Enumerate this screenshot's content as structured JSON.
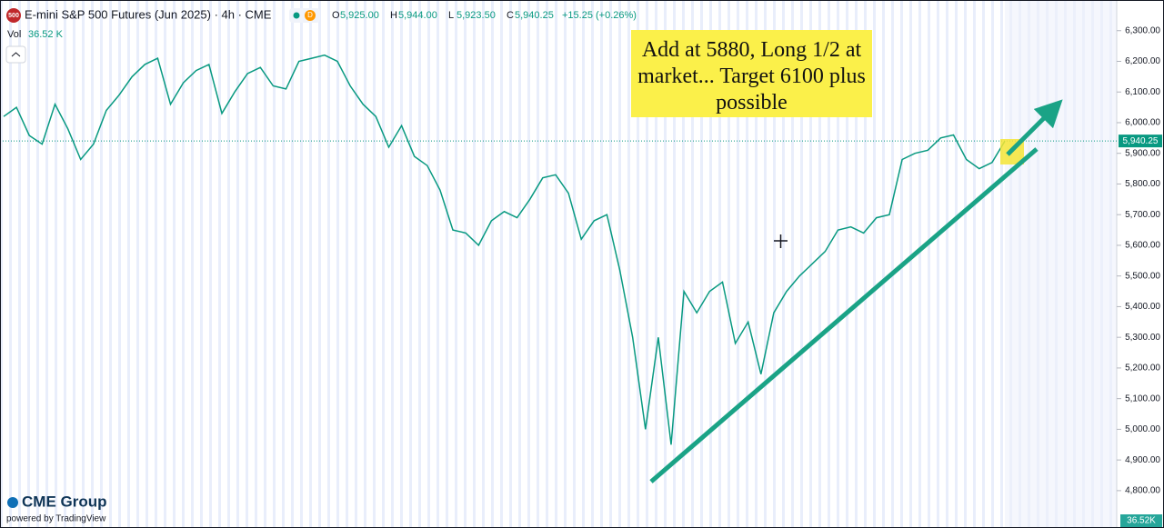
{
  "chart_data": {
    "type": "line",
    "title": "E-mini S&P 500 Futures (Jun 2025) · 4h · CME",
    "symbol_badge": "500",
    "status_badge": "D",
    "ohlc": [
      {
        "key": "O",
        "text": "5,925.00"
      },
      {
        "key": "H",
        "text": "5,944.00"
      },
      {
        "key": "L",
        "text": "5,923.50"
      },
      {
        "key": "C",
        "text": "5,940.25"
      }
    ],
    "change": "+15.25 (+0.26%)",
    "volume_label": "Vol",
    "volume_text": "36.52 K",
    "volume_axis_text": "36.52K",
    "annotation": "Add at 5880, Long 1/2 at market... Target 6100 plus possible",
    "logo": "CME Group",
    "powered_by": "powered by TradingView",
    "last_price": {
      "value": 5940.25,
      "label": "5,940.25"
    },
    "color": "#089981",
    "categories": [
      null,
      null,
      null,
      null,
      null,
      null,
      null,
      null,
      null,
      null,
      null,
      null,
      null,
      null,
      null,
      null,
      null,
      null,
      null,
      null,
      null,
      null,
      null,
      null,
      null,
      null,
      null,
      null,
      null,
      null,
      null,
      null,
      null,
      null,
      null,
      null,
      null,
      null,
      null,
      null,
      null,
      null,
      null,
      null,
      null,
      null,
      null,
      null,
      null,
      null,
      null,
      null,
      null,
      null,
      null,
      null,
      null,
      null,
      null,
      null,
      null,
      null,
      null,
      null,
      null,
      null,
      null,
      null,
      null,
      null,
      null,
      null,
      null,
      null,
      null,
      null,
      null,
      null,
      null
    ],
    "values": [
      6020,
      6050,
      5958,
      5930,
      6060,
      5980,
      5880,
      5930,
      6040,
      6090,
      6150,
      6190,
      6210,
      6060,
      6130,
      6170,
      6190,
      6030,
      6100,
      6160,
      6180,
      6120,
      6110,
      6200,
      6210,
      6220,
      6200,
      6120,
      6060,
      6020,
      5920,
      5990,
      5890,
      5860,
      5780,
      5650,
      5640,
      5600,
      5680,
      5710,
      5690,
      5750,
      5820,
      5830,
      5770,
      5620,
      5680,
      5700,
      5520,
      5300,
      5000,
      5300,
      4950,
      5450,
      5380,
      5450,
      5480,
      5280,
      5350,
      5180,
      5380,
      5450,
      5500,
      5540,
      5580,
      5650,
      5660,
      5640,
      5690,
      5700,
      5880,
      5900,
      5910,
      5950,
      5960,
      5880,
      5850,
      5870,
      5940
    ],
    "ylim": [
      4690,
      6400
    ],
    "yticks": [
      {
        "value": 4800,
        "label": "4,800.00"
      },
      {
        "value": 4900,
        "label": "4,900.00"
      },
      {
        "value": 5000,
        "label": "5,000.00"
      },
      {
        "value": 5100,
        "label": "5,100.00"
      },
      {
        "value": 5200,
        "label": "5,200.00"
      },
      {
        "value": 5300,
        "label": "5,300.00"
      },
      {
        "value": 5400,
        "label": "5,400.00"
      },
      {
        "value": 5500,
        "label": "5,500.00"
      },
      {
        "value": 5600,
        "label": "5,600.00"
      },
      {
        "value": 5700,
        "label": "5,700.00"
      },
      {
        "value": 5800,
        "label": "5,800.00"
      },
      {
        "value": 5900,
        "label": "5,900.00"
      },
      {
        "value": 6000,
        "label": "6,000.00"
      },
      {
        "value": 6100,
        "label": "6,100.00"
      },
      {
        "value": 6200,
        "label": "6,200.00"
      },
      {
        "value": 6300,
        "label": "6,300.00"
      }
    ]
  }
}
